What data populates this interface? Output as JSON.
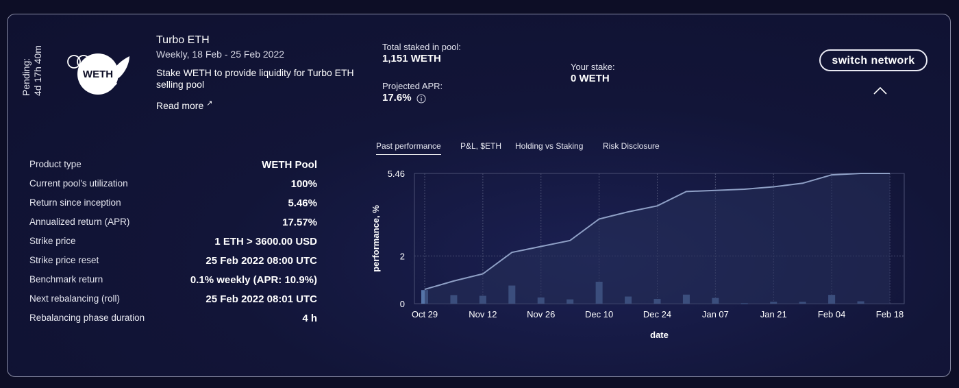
{
  "pending": {
    "label": "Pending:",
    "time": "4d 17h 40m"
  },
  "product": {
    "logo_text": "WETH",
    "title": "Turbo ETH",
    "dates": "Weekly, 18 Feb - 25 Feb 2022",
    "description": "Stake WETH to provide liquidity for Turbo ETH selling pool",
    "read_more": "Read more"
  },
  "stats": {
    "total_staked_label": "Total staked in pool:",
    "total_staked_value": "1,151 WETH",
    "projected_apr_label": "Projected APR:",
    "projected_apr_value": "17.6%",
    "your_stake_label": "Your stake:",
    "your_stake_value": "0 WETH"
  },
  "switch_network": "switch network",
  "properties": [
    {
      "key": "Product type",
      "value": "WETH Pool"
    },
    {
      "key": "Current pool's utilization",
      "value": "100%"
    },
    {
      "key": "Return since inception",
      "value": "5.46%"
    },
    {
      "key": "Annualized return (APR)",
      "value": "17.57%"
    },
    {
      "key": "Strike price",
      "value": "1 ETH > 3600.00 USD"
    },
    {
      "key": "Strike price reset",
      "value": "25 Feb 2022 08:00 UTC"
    },
    {
      "key": "Benchmark return",
      "value": "0.1% weekly (APR: 10.9%)"
    },
    {
      "key": "Next rebalancing (roll)",
      "value": "25 Feb 2022 08:01 UTC"
    },
    {
      "key": "Rebalancing phase duration",
      "value": "4 h"
    }
  ],
  "tabs": [
    {
      "label": "Past performance",
      "active": true
    },
    {
      "label": "P&L, $ETH",
      "active": false
    },
    {
      "label": "Holding vs Staking",
      "active": false
    },
    {
      "label": "Risk Disclosure",
      "active": false
    }
  ],
  "colors": {
    "line": "#8fa0c6",
    "bar": "#5574a8",
    "grid": "#4a4f73",
    "area": "#27305a"
  },
  "chart_data": {
    "type": "line",
    "xlabel": "date",
    "ylabel": "performance, %",
    "x_ticks": [
      "Oct 29",
      "Nov 12",
      "Nov 26",
      "Dec 10",
      "Dec 24",
      "Jan 07",
      "Jan 21",
      "Feb 04",
      "Feb 18"
    ],
    "y_ticks": [
      "0",
      "2",
      "5.46"
    ],
    "ylim": [
      0,
      5.46
    ],
    "x_range_days": [
      0,
      112
    ],
    "series": [
      {
        "kind": "line",
        "days": [
          0,
          7,
          14,
          21,
          28,
          35,
          42,
          49,
          56,
          63,
          70,
          77,
          84,
          91,
          98,
          105,
          112
        ],
        "values": [
          0.6,
          0.95,
          1.25,
          2.15,
          2.4,
          2.65,
          3.55,
          3.85,
          4.1,
          4.7,
          4.75,
          4.8,
          4.9,
          5.05,
          5.4,
          5.46,
          5.46
        ]
      },
      {
        "kind": "bar",
        "days": [
          0,
          7,
          14,
          21,
          28,
          35,
          42,
          49,
          56,
          63,
          70,
          77,
          84,
          91,
          98,
          105
        ],
        "values": [
          0.57,
          0.36,
          0.33,
          0.76,
          0.26,
          0.18,
          0.92,
          0.3,
          0.2,
          0.38,
          0.24,
          0.02,
          0.08,
          0.08,
          0.37,
          0.1
        ]
      }
    ]
  }
}
